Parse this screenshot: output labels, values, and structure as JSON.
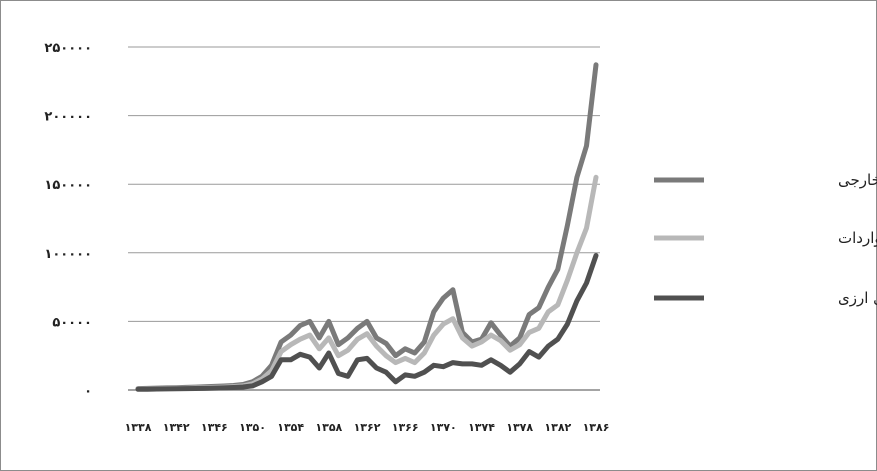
{
  "chart_data": {
    "type": "line",
    "title": "",
    "xlabel": "",
    "ylabel": "",
    "ylim": [
      0,
      250000
    ],
    "y_ticks": [
      "۰",
      "۵۰۰۰۰",
      "۱۰۰۰۰۰",
      "۱۵۰۰۰۰",
      "۲۰۰۰۰۰",
      "۲۵۰۰۰۰"
    ],
    "y_tick_values": [
      0,
      50000,
      100000,
      150000,
      200000,
      250000
    ],
    "x": [
      1338,
      1339,
      1340,
      1341,
      1342,
      1343,
      1344,
      1345,
      1346,
      1347,
      1348,
      1349,
      1350,
      1351,
      1352,
      1353,
      1354,
      1355,
      1356,
      1357,
      1358,
      1359,
      1360,
      1361,
      1362,
      1363,
      1364,
      1365,
      1366,
      1367,
      1368,
      1369,
      1370,
      1371,
      1372,
      1373,
      1374,
      1375,
      1376,
      1377,
      1378,
      1379,
      1380,
      1381,
      1382,
      1383,
      1384,
      1385,
      1386
    ],
    "x_tick_labels": [
      "۱۳۳۸",
      "۱۳۴۲",
      "۱۳۴۶",
      "۱۳۵۰",
      "۱۳۵۴",
      "۱۳۵۸",
      "۱۳۶۲",
      "۱۳۶۶",
      "۱۳۷۰",
      "۱۳۷۴",
      "۱۳۷۸",
      "۱۳۸۲",
      "۱۳۸۶"
    ],
    "x_tick_years": [
      1338,
      1342,
      1346,
      1350,
      1354,
      1358,
      1362,
      1366,
      1370,
      1374,
      1378,
      1382,
      1386
    ],
    "grid": true,
    "legend_position": "right",
    "series": [
      {
        "name": "دارایی های خارجی",
        "color": "#7a7a7a",
        "values": [
          1000,
          1200,
          1400,
          1500,
          1700,
          1900,
          2100,
          2300,
          2600,
          2900,
          3300,
          4000,
          6000,
          10000,
          18000,
          35000,
          40000,
          47000,
          50000,
          38000,
          50000,
          33000,
          38000,
          45000,
          50000,
          38000,
          34000,
          25000,
          30000,
          27000,
          35000,
          57000,
          67000,
          73000,
          42000,
          35000,
          37000,
          49000,
          40000,
          32000,
          38000,
          55000,
          60000,
          75000,
          88000,
          120000,
          155000,
          178000,
          237000
        ]
      },
      {
        "name": "واردات",
        "color": "#b8b8b8",
        "values": [
          700,
          800,
          1000,
          1100,
          1200,
          1300,
          1500,
          1700,
          1900,
          2100,
          2500,
          3000,
          4500,
          8000,
          14000,
          28000,
          33000,
          37000,
          40000,
          30000,
          38000,
          25000,
          29000,
          37000,
          41000,
          32000,
          25000,
          20000,
          23000,
          20000,
          27000,
          40000,
          48000,
          52000,
          38000,
          32000,
          35000,
          40000,
          36000,
          29000,
          33000,
          42000,
          45000,
          57000,
          62000,
          80000,
          100000,
          118000,
          155000
        ]
      },
      {
        "name": "درآمدهای ارزی",
        "color": "#505050",
        "values": [
          500,
          600,
          700,
          800,
          900,
          1000,
          1100,
          1200,
          1400,
          1500,
          1800,
          2200,
          3000,
          6000,
          10000,
          22000,
          22000,
          26000,
          24000,
          16000,
          27000,
          12000,
          10000,
          22000,
          23000,
          16000,
          13000,
          6000,
          11000,
          10000,
          13000,
          18000,
          17000,
          20000,
          19000,
          19000,
          18000,
          22000,
          18000,
          13000,
          19000,
          28000,
          24000,
          32000,
          37000,
          48000,
          65000,
          78000,
          98000
        ]
      }
    ]
  }
}
